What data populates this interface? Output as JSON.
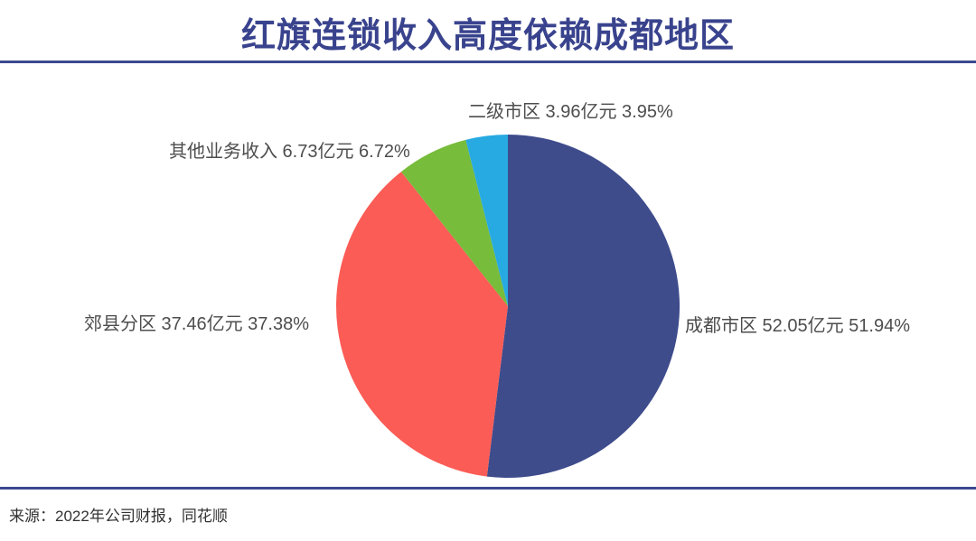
{
  "title": "红旗连锁收入高度依赖成都地区",
  "source": "来源：2022年公司财报，同花顺",
  "colors": {
    "title_text": "#39438D",
    "divider": "#3C4890",
    "label_text": "#4D4D4D",
    "background": "#FFFFFF"
  },
  "chart_data": {
    "type": "pie",
    "title": "红旗连锁收入高度依赖成都地区",
    "unit": "亿元",
    "start_angle_deg": -90,
    "direction": "clockwise",
    "legend_position": "none",
    "slices": [
      {
        "name": "成都市区",
        "value_yi_yuan": 52.05,
        "percent": 51.94,
        "color": "#3E4C8C",
        "label": "成都市区 52.05亿元 51.94%"
      },
      {
        "name": "郊县分区",
        "value_yi_yuan": 37.46,
        "percent": 37.38,
        "color": "#FB5C55",
        "label": "郊县分区 37.46亿元 37.38%"
      },
      {
        "name": "其他业务收入",
        "value_yi_yuan": 6.73,
        "percent": 6.72,
        "color": "#77BC3B",
        "label": "其他业务收入 6.73亿元 6.72%"
      },
      {
        "name": "二级市区",
        "value_yi_yuan": 3.96,
        "percent": 3.95,
        "color": "#27AAE1",
        "label": "二级市区 3.96亿元 3.95%"
      }
    ]
  }
}
